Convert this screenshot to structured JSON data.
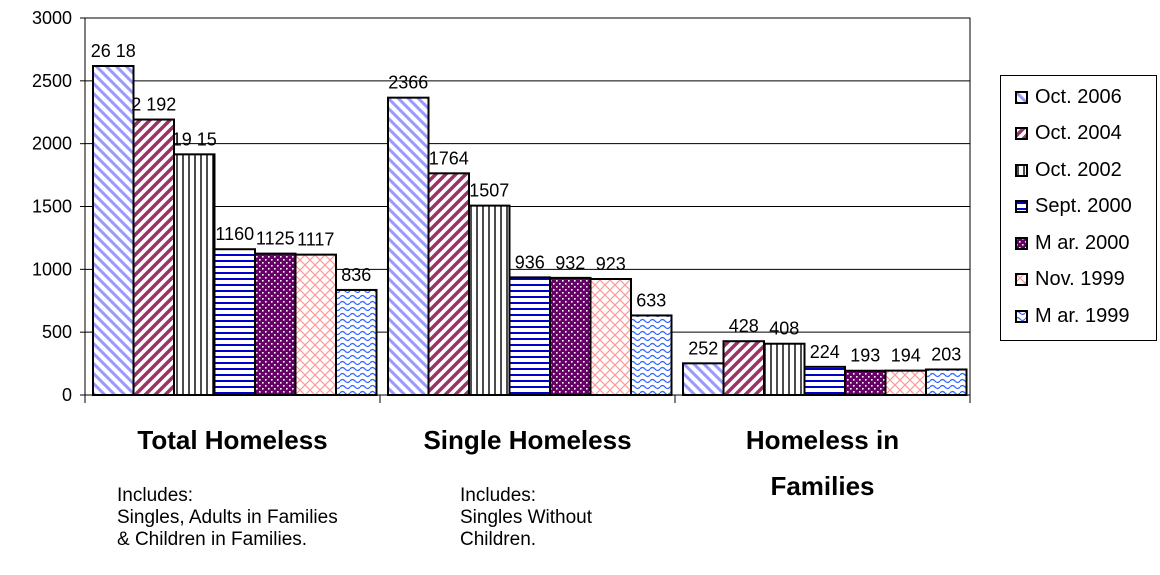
{
  "chart_data": {
    "type": "bar",
    "title": "",
    "xlabel": "",
    "ylabel": "",
    "ylim": [
      0,
      3000
    ],
    "yticks": [
      0,
      500,
      1000,
      1500,
      2000,
      2500,
      3000
    ],
    "grid": true,
    "legend_position": "right",
    "categories": [
      "Total Homeless",
      "Single Homeless",
      "Homeless in Families"
    ],
    "category_notes": [
      "Includes:\nSingles, Adults in Families\n& Children in Families.",
      "Includes:\nSingles Without\nChildren.",
      ""
    ],
    "series": [
      {
        "name": "Oct. 2006",
        "values": [
          2618,
          2366,
          252
        ],
        "labels": [
          "26 18",
          "2366",
          "252"
        ],
        "color": "#9999ff",
        "pattern": "diagonal-down"
      },
      {
        "name": "Oct. 2004",
        "values": [
          2192,
          1764,
          428
        ],
        "labels": [
          "2 192",
          "1764",
          "428"
        ],
        "color": "#993366",
        "pattern": "diagonal-up"
      },
      {
        "name": "Oct. 2002",
        "values": [
          1915,
          1507,
          408
        ],
        "labels": [
          "19 15",
          "1507",
          "408"
        ],
        "color": "#000000",
        "pattern": "vertical"
      },
      {
        "name": "Sept. 2000",
        "values": [
          1160,
          936,
          224
        ],
        "labels": [
          "1160",
          "936",
          "224"
        ],
        "color": "#0000cc",
        "pattern": "horizontal"
      },
      {
        "name": "M ar. 2000",
        "values": [
          1125,
          932,
          193
        ],
        "labels": [
          "1125",
          "932",
          "193"
        ],
        "color": "#660066",
        "pattern": "dots"
      },
      {
        "name": "Nov. 1999",
        "values": [
          1117,
          923,
          194
        ],
        "labels": [
          "1117",
          "923",
          "194"
        ],
        "color": "#ff9999",
        "pattern": "crosshatch"
      },
      {
        "name": "M ar. 1999",
        "values": [
          836,
          633,
          203
        ],
        "labels": [
          "836",
          "633",
          "203"
        ],
        "color": "#3366ff",
        "pattern": "wave"
      }
    ]
  }
}
